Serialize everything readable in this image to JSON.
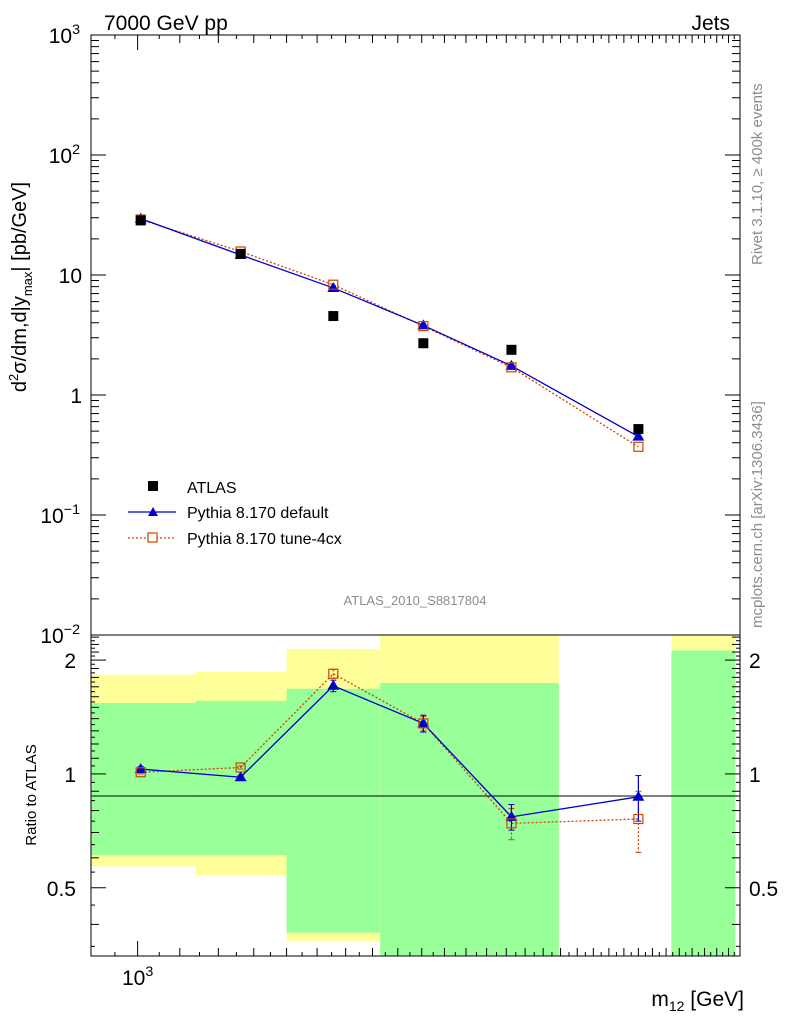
{
  "header": {
    "left_title": "7000 GeV pp",
    "right_title": "Jets"
  },
  "side_text": {
    "rivet": "Rivet 3.1.10, ≥ 400k events",
    "mcplots": "mcplots.cern.ch [arXiv:1306.3436]"
  },
  "analysis_label": "ATLAS_2010_S8817804",
  "colors": {
    "data": "#000000",
    "default": "#0000cc",
    "tune": "#cc4400",
    "band_inner": "#99ff99",
    "band_outer": "#ffff99"
  },
  "chart_data": [
    {
      "type": "scatter",
      "name": "main",
      "ylabel": "d²σ/dm,d|y_max| [pb/GeV]",
      "yscale": "log",
      "ylim": [
        0.01,
        1000
      ],
      "y_ticks": [
        {
          "value": 1000,
          "base": "10",
          "exp": "3"
        },
        {
          "value": 100,
          "base": "10",
          "exp": "2"
        },
        {
          "value": 10,
          "base": "10",
          "exp": ""
        },
        {
          "value": 1,
          "base": "1",
          "exp": ""
        },
        {
          "value": 0.1,
          "base": "10",
          "exp": "−1"
        },
        {
          "value": 0.01,
          "base": "10",
          "exp": "−2"
        }
      ],
      "x": [
        1007,
        1262,
        1556,
        1907,
        2327,
        3100
      ],
      "series": [
        {
          "name": "ATLAS",
          "values": [
            28.5,
            15.0,
            4.55,
            2.7,
            2.38,
            0.52
          ]
        },
        {
          "name": "Pythia 8.170 default",
          "values": [
            29.5,
            14.7,
            7.8,
            3.8,
            1.75,
            0.45
          ]
        },
        {
          "name": "Pythia 8.170 tune-4cx",
          "values": [
            29.0,
            15.7,
            8.3,
            3.75,
            1.7,
            0.37
          ]
        }
      ]
    },
    {
      "type": "scatter",
      "name": "ratio",
      "ylabel": "Ratio to ATLAS",
      "xlabel": "m_12 [GeV]",
      "ylim": [
        0.33,
        2.33
      ],
      "y_ticks": [
        {
          "value": 0.5,
          "label": "0.5"
        },
        {
          "value": 1,
          "label": "1"
        },
        {
          "value": 2,
          "label": "2"
        }
      ],
      "x_ticks": [
        {
          "value": 1000,
          "base": "10",
          "exp": "3"
        }
      ],
      "x": [
        1007,
        1262,
        1556,
        1907,
        2327,
        3100
      ],
      "bands": [
        {
          "x0": 880,
          "x1": 1140,
          "inner": [
            0.61,
            1.54
          ],
          "outer": [
            0.57,
            1.83
          ]
        },
        {
          "x0": 1140,
          "x1": 1400,
          "inner": [
            0.61,
            1.56
          ],
          "outer": [
            0.54,
            1.86
          ]
        },
        {
          "x0": 1400,
          "x1": 1730,
          "inner": [
            0.38,
            1.68
          ],
          "outer": [
            0.36,
            2.14
          ]
        },
        {
          "x0": 1730,
          "x1": 2590,
          "inner": [
            0.33,
            1.74
          ],
          "outer": [
            0.33,
            2.33
          ]
        },
        {
          "x0": 3340,
          "x1": 3860,
          "inner": [
            0.33,
            2.12
          ],
          "outer": [
            0.33,
            2.33
          ]
        }
      ],
      "series": [
        {
          "name": "Pythia 8.170 default",
          "values": [
            1.03,
            0.98,
            1.71,
            1.36,
            0.77,
            0.87
          ],
          "err": [
            0.015,
            0.01,
            0.06,
            0.07,
            0.06,
            0.12
          ]
        },
        {
          "name": "Pythia 8.170 tune-4cx",
          "values": [
            1.01,
            1.04,
            1.84,
            1.36,
            0.74,
            0.76
          ],
          "err": [
            0.01,
            0.01,
            0.05,
            0.06,
            0.07,
            0.14
          ]
        }
      ]
    }
  ]
}
